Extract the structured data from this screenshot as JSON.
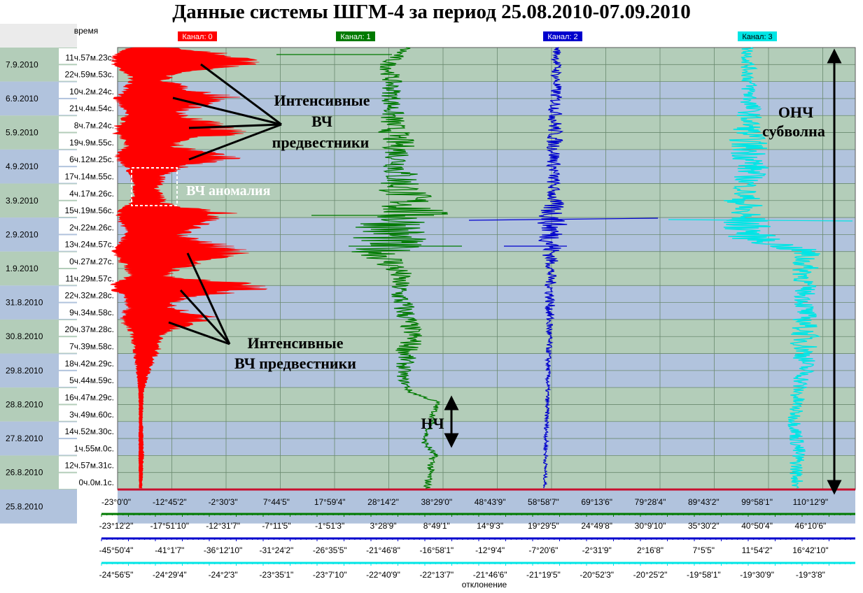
{
  "title": "Данные системы ШГМ-4 за период 25.08.2010-07.09.2010",
  "labels": {
    "time_header": "время",
    "deviation_footer": "отклонение"
  },
  "colors": {
    "band_green": "#b3cdb9",
    "band_blue": "#b1c3dd",
    "grid": "#6a8a6f",
    "baseline": "#c8102e",
    "ch0": "#ff0000",
    "ch1": "#007a00",
    "ch2": "#0000cc",
    "ch3": "#00e5e5"
  },
  "chart_data": {
    "type": "line",
    "y_axis": {
      "label": "время",
      "dates": [
        "7.9.2010",
        "6.9.2010",
        "5.9.2010",
        "4.9.2010",
        "3.9.2010",
        "2.9.2010",
        "1.9.2010",
        "31.8.2010",
        "30.8.2010",
        "29.8.2010",
        "28.8.2010",
        "27.8.2010",
        "26.8.2010",
        "25.8.2010"
      ],
      "times": [
        "11ч.57м.23с.",
        "22ч.59м.53с.",
        "10ч.2м.24с.",
        "21ч.4м.54с.",
        "8ч.7м.24с.",
        "19ч.9м.55с.",
        "6ч.12м.25с.",
        "17ч.14м.55с.",
        "4ч.17м.26с.",
        "15ч.19м.56с.",
        "2ч.22м.26с.",
        "13ч.24м.57с.",
        "0ч.27м.27с.",
        "11ч.29м.57с.",
        "22ч.32м.28с.",
        "9ч.34м.58с.",
        "20ч.37м.28с.",
        "7ч.39м.58с.",
        "18ч.42м.29с.",
        "5ч.44м.59с.",
        "16ч.47м.29с.",
        "3ч.49м.60с.",
        "14ч.52м.30с.",
        "1ч.55м.0с.",
        "12ч.57м.31с.",
        "0ч.0м.1с."
      ]
    },
    "x_axes": [
      {
        "channel": "Канал: 0",
        "ticks": [
          "-23°0'0\"",
          "-12°45'2\"",
          "-2°30'3\"",
          "7°44'5\"",
          "17°59'4\"",
          "28°14'2\"",
          "38°29'0\"",
          "48°43'9\"",
          "58°58'7\"",
          "69°13'6\"",
          "79°28'4\"",
          "89°43'2\"",
          "99°58'1\"",
          "110°12'9\""
        ]
      },
      {
        "channel": "Канал: 1",
        "ticks": [
          "-23°12'2\"",
          "-17°51'10\"",
          "-12°31'7\"",
          "-7°11'5\"",
          "-1°51'3\"",
          "3°28'9\"",
          "8°49'1\"",
          "14°9'3\"",
          "19°29'5\"",
          "24°49'8\"",
          "30°9'10\"",
          "35°30'2\"",
          "40°50'4\"",
          "46°10'6\""
        ]
      },
      {
        "channel": "Канал: 2",
        "ticks": [
          "-45°50'4\"",
          "-41°1'7\"",
          "-36°12'10\"",
          "-31°24'2\"",
          "-26°35'5\"",
          "-21°46'8\"",
          "-16°58'1\"",
          "-12°9'4\"",
          "-7°20'6\"",
          "-2°31'9\"",
          "2°16'8\"",
          "7°5'5\"",
          "11°54'2\"",
          "16°42'10\""
        ]
      },
      {
        "channel": "Канал: 3",
        "ticks": [
          "-24°56'5\"",
          "-24°29'4\"",
          "-24°2'3\"",
          "-23°35'1\"",
          "-23°7'10\"",
          "-22°40'9\"",
          "-22°13'7\"",
          "-21°46'6\"",
          "-21°19'5\"",
          "-20°52'3\"",
          "-20°25'2\"",
          "-19°58'1\"",
          "-19°30'9\"",
          "-19°3'8\""
        ]
      }
    ],
    "series": [
      {
        "name": "Канал: 0",
        "color": "#ff0000"
      },
      {
        "name": "Канал: 1",
        "color": "#007a00"
      },
      {
        "name": "Канал: 2",
        "color": "#0000cc"
      },
      {
        "name": "Канал: 3",
        "color": "#00e5e5"
      }
    ],
    "annotations": [
      {
        "id": "hf-precursors-top",
        "lines": [
          "Интенсивные",
          "ВЧ",
          "предвестники"
        ]
      },
      {
        "id": "hf-anomaly",
        "lines": [
          "ВЧ аномалия"
        ]
      },
      {
        "id": "hf-precursors-bottom",
        "lines": [
          "Интенсивные",
          "ВЧ предвестники"
        ]
      },
      {
        "id": "lf",
        "lines": [
          "НЧ"
        ]
      },
      {
        "id": "ulf-subwave",
        "lines": [
          "ОНЧ",
          "субволна"
        ]
      }
    ]
  }
}
